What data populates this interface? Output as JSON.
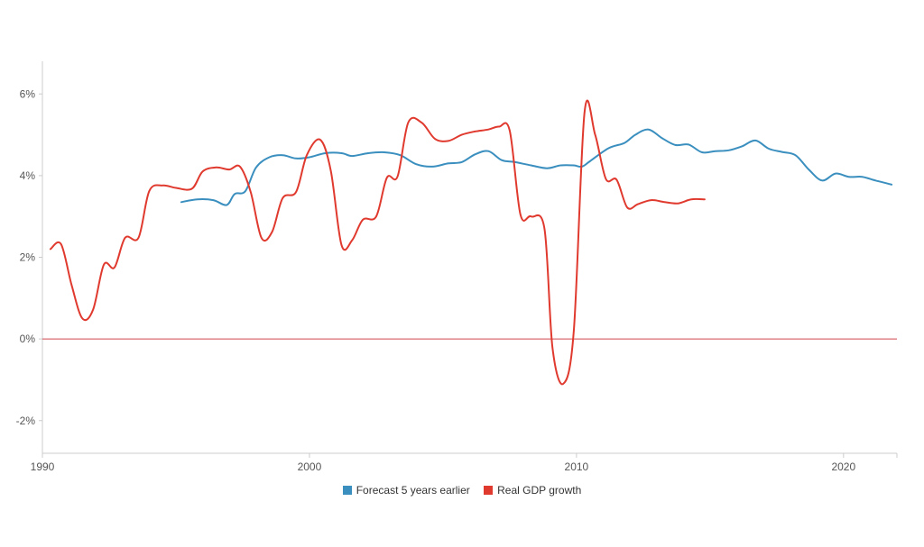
{
  "chart_data": {
    "type": "line",
    "title": "",
    "xlabel": "",
    "ylabel": "",
    "xlim": [
      1990,
      2022
    ],
    "ylim": [
      -2.8,
      6.8
    ],
    "x_ticks": [
      1990,
      2000,
      2010,
      2020
    ],
    "y_ticks": [
      -2,
      0,
      2,
      4,
      6
    ],
    "y_tick_suffix": "%",
    "grid": false,
    "legend_position": "bottom-center",
    "reference_line": {
      "y": 0,
      "color": "#d0454b"
    },
    "series": [
      {
        "name": "Forecast 5 years earlier",
        "color": "#3a8fbf",
        "points": [
          [
            1995.2,
            3.35
          ],
          [
            1995.8,
            3.42
          ],
          [
            1996.4,
            3.4
          ],
          [
            1996.9,
            3.28
          ],
          [
            1997.2,
            3.55
          ],
          [
            1997.6,
            3.62
          ],
          [
            1998.0,
            4.2
          ],
          [
            1998.5,
            4.45
          ],
          [
            1999.0,
            4.5
          ],
          [
            1999.5,
            4.42
          ],
          [
            2000.0,
            4.45
          ],
          [
            2000.6,
            4.55
          ],
          [
            2001.2,
            4.55
          ],
          [
            2001.6,
            4.48
          ],
          [
            2002.2,
            4.55
          ],
          [
            2002.8,
            4.57
          ],
          [
            2003.4,
            4.5
          ],
          [
            2004.0,
            4.28
          ],
          [
            2004.6,
            4.22
          ],
          [
            2005.2,
            4.3
          ],
          [
            2005.7,
            4.33
          ],
          [
            2006.2,
            4.52
          ],
          [
            2006.7,
            4.6
          ],
          [
            2007.2,
            4.38
          ],
          [
            2007.7,
            4.33
          ],
          [
            2008.3,
            4.25
          ],
          [
            2008.9,
            4.18
          ],
          [
            2009.4,
            4.25
          ],
          [
            2009.9,
            4.25
          ],
          [
            2010.2,
            4.22
          ],
          [
            2010.5,
            4.35
          ],
          [
            2011.2,
            4.67
          ],
          [
            2011.8,
            4.8
          ],
          [
            2012.2,
            5.0
          ],
          [
            2012.7,
            5.13
          ],
          [
            2013.2,
            4.92
          ],
          [
            2013.7,
            4.75
          ],
          [
            2014.2,
            4.76
          ],
          [
            2014.7,
            4.57
          ],
          [
            2015.2,
            4.6
          ],
          [
            2015.7,
            4.62
          ],
          [
            2016.2,
            4.72
          ],
          [
            2016.7,
            4.86
          ],
          [
            2017.2,
            4.66
          ],
          [
            2017.7,
            4.58
          ],
          [
            2018.2,
            4.5
          ],
          [
            2018.7,
            4.15
          ],
          [
            2019.2,
            3.88
          ],
          [
            2019.7,
            4.05
          ],
          [
            2020.2,
            3.97
          ],
          [
            2020.7,
            3.97
          ],
          [
            2021.2,
            3.88
          ],
          [
            2021.8,
            3.78
          ]
        ]
      },
      {
        "name": "Real GDP growth",
        "color": "#e03a2f",
        "points": [
          [
            1990.3,
            2.2
          ],
          [
            1990.7,
            2.32
          ],
          [
            1991.1,
            1.3
          ],
          [
            1991.5,
            0.5
          ],
          [
            1991.9,
            0.72
          ],
          [
            1992.3,
            1.82
          ],
          [
            1992.7,
            1.75
          ],
          [
            1993.1,
            2.48
          ],
          [
            1993.6,
            2.48
          ],
          [
            1994.0,
            3.62
          ],
          [
            1994.5,
            3.76
          ],
          [
            1995.0,
            3.7
          ],
          [
            1995.6,
            3.68
          ],
          [
            1996.0,
            4.1
          ],
          [
            1996.5,
            4.2
          ],
          [
            1997.0,
            4.15
          ],
          [
            1997.4,
            4.22
          ],
          [
            1997.8,
            3.6
          ],
          [
            1998.2,
            2.48
          ],
          [
            1998.6,
            2.62
          ],
          [
            1999.0,
            3.45
          ],
          [
            1999.5,
            3.6
          ],
          [
            1999.9,
            4.5
          ],
          [
            2000.4,
            4.88
          ],
          [
            2000.8,
            4.12
          ],
          [
            2001.2,
            2.3
          ],
          [
            2001.6,
            2.42
          ],
          [
            2002.0,
            2.92
          ],
          [
            2002.5,
            3.0
          ],
          [
            2002.9,
            3.95
          ],
          [
            2003.3,
            3.98
          ],
          [
            2003.7,
            5.3
          ],
          [
            2004.2,
            5.3
          ],
          [
            2004.7,
            4.9
          ],
          [
            2005.2,
            4.85
          ],
          [
            2005.7,
            5.0
          ],
          [
            2006.2,
            5.08
          ],
          [
            2006.7,
            5.13
          ],
          [
            2007.1,
            5.2
          ],
          [
            2007.5,
            5.1
          ],
          [
            2007.9,
            3.05
          ],
          [
            2008.3,
            3.0
          ],
          [
            2008.8,
            2.7
          ],
          [
            2009.1,
            -0.2
          ],
          [
            2009.5,
            -1.1
          ],
          [
            2009.9,
            0.2
          ],
          [
            2010.3,
            5.55
          ],
          [
            2010.7,
            5.0
          ],
          [
            2011.1,
            3.92
          ],
          [
            2011.5,
            3.9
          ],
          [
            2011.9,
            3.22
          ],
          [
            2012.3,
            3.3
          ],
          [
            2012.8,
            3.4
          ],
          [
            2013.3,
            3.35
          ],
          [
            2013.8,
            3.32
          ],
          [
            2014.3,
            3.42
          ],
          [
            2014.8,
            3.42
          ]
        ]
      }
    ]
  }
}
